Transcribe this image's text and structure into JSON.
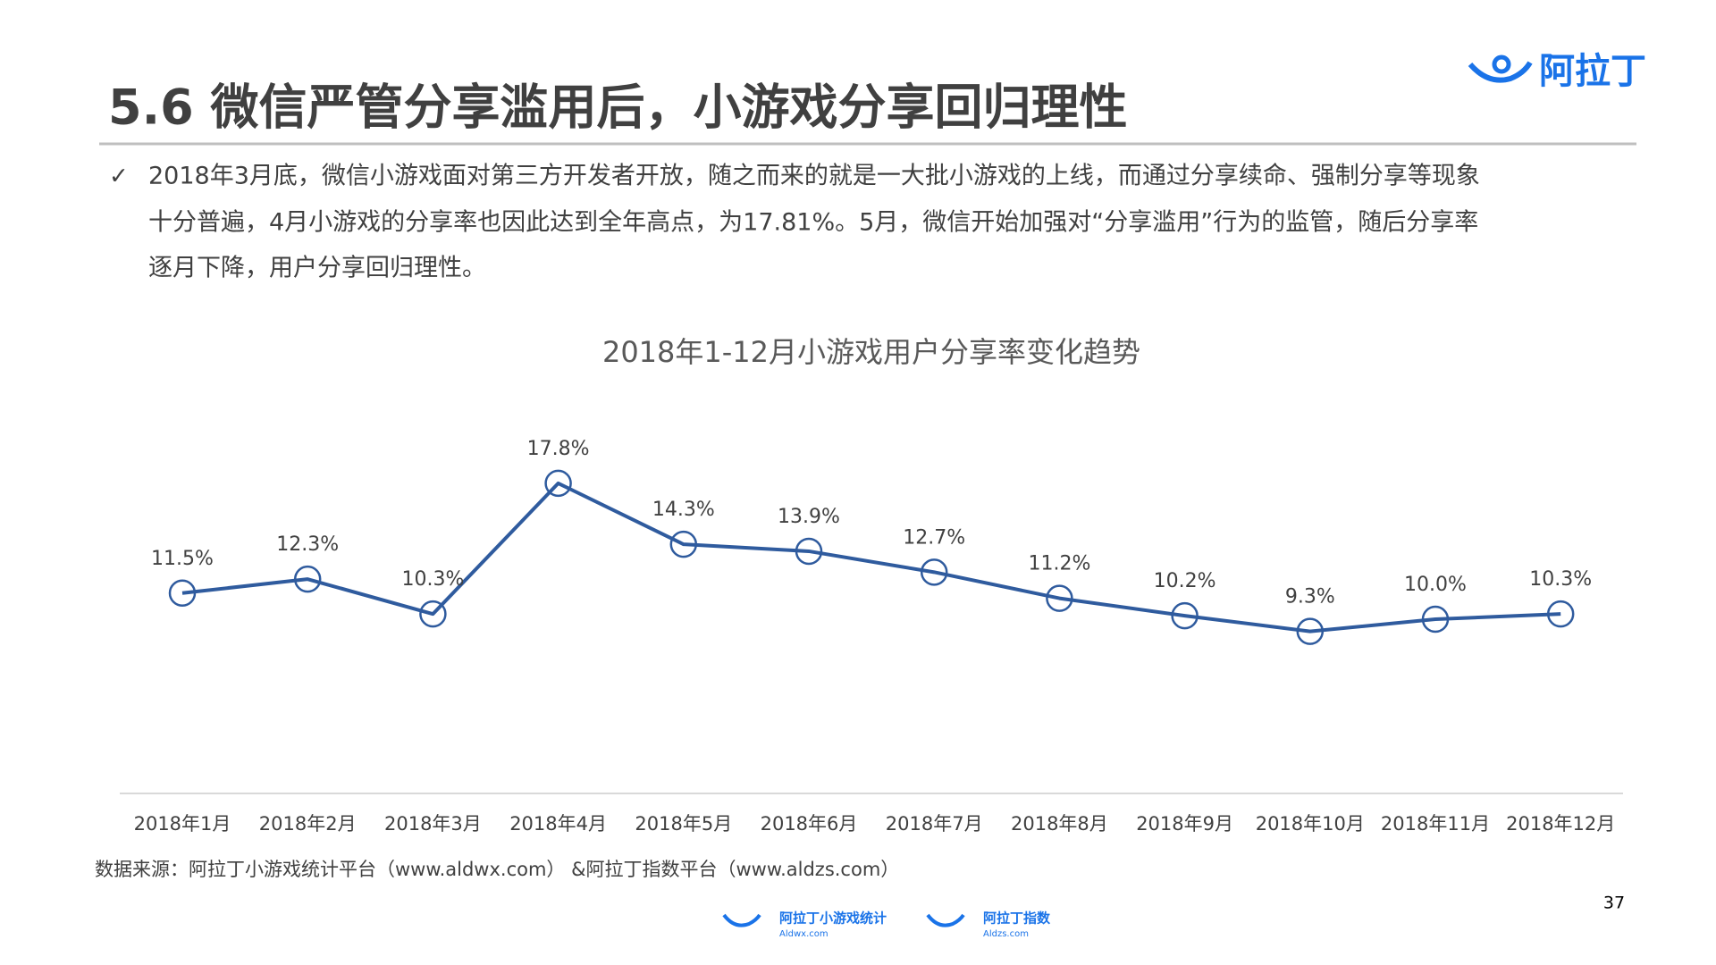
{
  "header": {
    "title": "5.6 微信严管分享滥用后，小游戏分享回归理性",
    "logo": "阿拉丁"
  },
  "bullet": {
    "mark": "✓",
    "lines": [
      "2018年3月底，微信小游戏面对第三方开发者开放，随之而来的就是一大批小游戏的上线，而通过分享续命、强制分享等现象",
      "十分普遍，4月小游戏的分享率也因此达到全年高点，为17.81%。5月，微信开始加强对“分享滥用”行为的监管，随后分享率",
      "逐月下降，用户分享回归理性。"
    ]
  },
  "chart_data": {
    "type": "line",
    "title": "2018年1-12月小游戏用户分享率变化趋势",
    "categories": [
      "2018年1月",
      "2018年2月",
      "2018年3月",
      "2018年4月",
      "2018年5月",
      "2018年6月",
      "2018年7月",
      "2018年8月",
      "2018年9月",
      "2018年10月",
      "2018年11月",
      "2018年12月"
    ],
    "values": [
      11.5,
      12.3,
      10.3,
      17.8,
      14.3,
      13.9,
      12.7,
      11.2,
      10.2,
      9.3,
      10.0,
      10.3
    ],
    "value_labels": [
      "11.5%",
      "12.3%",
      "10.3%",
      "17.8%",
      "14.3%",
      "13.9%",
      "12.7%",
      "11.2%",
      "10.2%",
      "9.3%",
      "10.0%",
      "10.3%"
    ],
    "color": "#2f5b9e",
    "ylim": [
      0,
      20
    ]
  },
  "source": "数据来源：阿拉丁小游戏统计平台（www.aldwx.com） &阿拉丁指数平台（www.aldzs.com）",
  "page_number": "37",
  "footer": {
    "logos": [
      {
        "name": "阿拉丁小游戏统计",
        "url": "Aldwx.com"
      },
      {
        "name": "阿拉丁指数",
        "url": "Aldzs.com"
      }
    ]
  }
}
